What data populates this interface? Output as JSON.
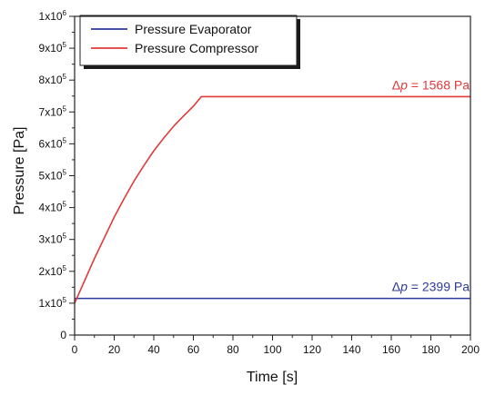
{
  "chart_data": {
    "type": "line",
    "xlabel": "Time [s]",
    "ylabel": "Pressure [Pa]",
    "xlim": [
      0,
      200
    ],
    "ylim": [
      0,
      1000000
    ],
    "x_ticks": [
      0,
      20,
      40,
      60,
      80,
      100,
      120,
      140,
      160,
      180,
      200
    ],
    "y_ticks": [
      {
        "value": 0,
        "label": "0",
        "exp": ""
      },
      {
        "value": 100000,
        "label": "1x10",
        "exp": "5"
      },
      {
        "value": 200000,
        "label": "2x10",
        "exp": "5"
      },
      {
        "value": 300000,
        "label": "3x10",
        "exp": "5"
      },
      {
        "value": 400000,
        "label": "4x10",
        "exp": "5"
      },
      {
        "value": 500000,
        "label": "5x10",
        "exp": "5"
      },
      {
        "value": 600000,
        "label": "6x10",
        "exp": "5"
      },
      {
        "value": 700000,
        "label": "7x10",
        "exp": "5"
      },
      {
        "value": 800000,
        "label": "8x10",
        "exp": "5"
      },
      {
        "value": 900000,
        "label": "9x10",
        "exp": "5"
      },
      {
        "value": 1000000,
        "label": "1x10",
        "exp": "6"
      }
    ],
    "grid": false,
    "legend": "top-left",
    "series": [
      {
        "name": "Pressure Evaporator",
        "color": "#2b3a9a",
        "x": [
          0,
          200
        ],
        "y": [
          115000,
          115000
        ]
      },
      {
        "name": "Pressure Compressor",
        "color": "#e03a3a",
        "x": [
          0,
          5,
          10,
          15,
          20,
          25,
          30,
          35,
          40,
          45,
          50,
          55,
          60,
          64,
          200
        ],
        "y": [
          100000,
          170000,
          240000,
          305000,
          370000,
          428000,
          483000,
          532000,
          578000,
          618000,
          655000,
          687000,
          718000,
          748000,
          748000
        ]
      }
    ],
    "annotations": [
      {
        "symbol": "Δ",
        "var": "p",
        "text": " = 1568 Pa",
        "color": "#e03a3a",
        "x": 200,
        "y": 748000
      },
      {
        "symbol": "Δ",
        "var": "p",
        "text": " = 2399 Pa",
        "color": "#2b3a9a",
        "x": 200,
        "y": 115000
      }
    ]
  }
}
